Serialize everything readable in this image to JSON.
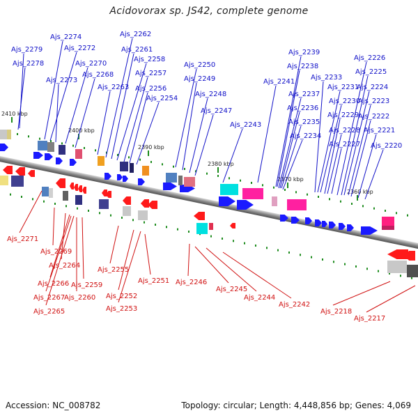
{
  "title": "Acidovorax sp. JS42, complete genome",
  "footer": {
    "accession": "Accession: NC_008782",
    "topology": "Topology: circular; Length: 4,448,856 bp; Genes: 4,069"
  },
  "colors": {
    "forward_label": "#1010c8",
    "reverse_label": "#d01010",
    "forward_gene": "#1a1aff",
    "reverse_gene": "#ff1a1a",
    "backbone": "#909090",
    "tick": "#1a8a1a"
  },
  "kbp_ticks": [
    "2410 kbp",
    "2400 kbp",
    "2390 kbp",
    "2380 kbp",
    "2370 kbp",
    "2360 kbp"
  ],
  "forward_genes": [
    "Ajs_2279",
    "Ajs_2278",
    "Ajs_2274",
    "Ajs_2272",
    "Ajs_2273",
    "Ajs_2270",
    "Ajs_2268",
    "Ajs_2263",
    "Ajs_2262",
    "Ajs_2261",
    "Ajs_2258",
    "Ajs_2257",
    "Ajs_2256",
    "Ajs_2254",
    "Ajs_2250",
    "Ajs_2249",
    "Ajs_2248",
    "Ajs_2247",
    "Ajs_2243",
    "Ajs_2241",
    "Ajs_2239",
    "Ajs_2238",
    "Ajs_2237",
    "Ajs_2236",
    "Ajs_2235",
    "Ajs_2234",
    "Ajs_2233",
    "Ajs_2231",
    "Ajs_2230",
    "Ajs_2229",
    "Ajs_2228",
    "Ajs_2227",
    "Ajs_2226",
    "Ajs_2225",
    "Ajs_2224",
    "Ajs_2223",
    "Ajs_2222",
    "Ajs_2221",
    "Ajs_2220"
  ],
  "reverse_genes": [
    "Ajs_2271",
    "Ajs_2269",
    "Ajs_2264",
    "Ajs_2266",
    "Ajs_2267",
    "Ajs_2265",
    "Ajs_2259",
    "Ajs_2260",
    "Ajs_2255",
    "Ajs_2252",
    "Ajs_2253",
    "Ajs_2251",
    "Ajs_2246",
    "Ajs_2245",
    "Ajs_2244",
    "Ajs_2242",
    "Ajs_2218",
    "Ajs_2217"
  ]
}
